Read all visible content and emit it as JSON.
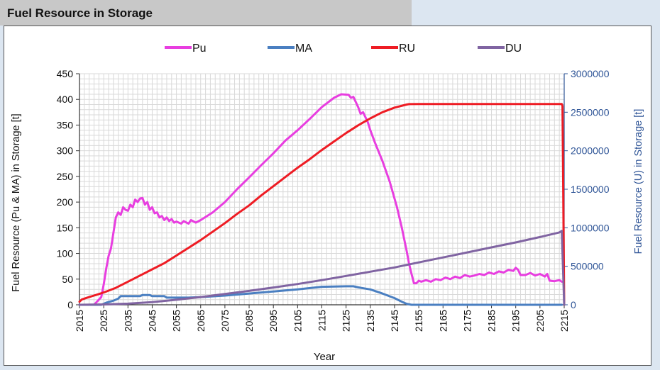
{
  "header": {
    "title": "Fuel Resource in Storage"
  },
  "chart_data": {
    "type": "line",
    "title": "",
    "xlabel": "Year",
    "ylabel": "Fuel Resource (Pu & MA) in Storage [t]",
    "y2label": "Fuel Resource (U) in Storage [t]",
    "xlim": [
      2015,
      2215
    ],
    "ylim": [
      0,
      450
    ],
    "y2lim": [
      0,
      3000000
    ],
    "x_ticks": [
      "2015",
      "2025",
      "2035",
      "2045",
      "2055",
      "2065",
      "2075",
      "2085",
      "2095",
      "2105",
      "2115",
      "2125",
      "2135",
      "2145",
      "2155",
      "2165",
      "2175",
      "2185",
      "2195",
      "2205",
      "2215"
    ],
    "y_ticks": [
      "0",
      "50",
      "100",
      "150",
      "200",
      "250",
      "300",
      "350",
      "400",
      "450"
    ],
    "y2_ticks": [
      "0",
      "500000",
      "1000000",
      "1500000",
      "2000000",
      "2500000",
      "3000000"
    ],
    "grid": true,
    "legend_position": "top",
    "series": [
      {
        "name": "Pu",
        "axis": "left",
        "color": "#e83ee0",
        "points": [
          [
            2015,
            0
          ],
          [
            2021,
            0
          ],
          [
            2022,
            5
          ],
          [
            2024,
            15
          ],
          [
            2025,
            40
          ],
          [
            2026,
            70
          ],
          [
            2027,
            95
          ],
          [
            2028,
            110
          ],
          [
            2029,
            140
          ],
          [
            2030,
            170
          ],
          [
            2031,
            180
          ],
          [
            2032,
            175
          ],
          [
            2033,
            190
          ],
          [
            2034,
            185
          ],
          [
            2035,
            183
          ],
          [
            2036,
            195
          ],
          [
            2037,
            190
          ],
          [
            2038,
            205
          ],
          [
            2039,
            200
          ],
          [
            2040,
            207
          ],
          [
            2041,
            208
          ],
          [
            2042,
            195
          ],
          [
            2043,
            200
          ],
          [
            2044,
            185
          ],
          [
            2045,
            190
          ],
          [
            2046,
            178
          ],
          [
            2047,
            180
          ],
          [
            2048,
            170
          ],
          [
            2049,
            173
          ],
          [
            2050,
            165
          ],
          [
            2051,
            170
          ],
          [
            2052,
            163
          ],
          [
            2053,
            167
          ],
          [
            2054,
            160
          ],
          [
            2055,
            162
          ],
          [
            2057,
            158
          ],
          [
            2058,
            163
          ],
          [
            2060,
            158
          ],
          [
            2061,
            165
          ],
          [
            2063,
            160
          ],
          [
            2065,
            165
          ],
          [
            2070,
            180
          ],
          [
            2075,
            200
          ],
          [
            2080,
            225
          ],
          [
            2085,
            248
          ],
          [
            2090,
            272
          ],
          [
            2095,
            295
          ],
          [
            2100,
            320
          ],
          [
            2105,
            340
          ],
          [
            2110,
            362
          ],
          [
            2115,
            385
          ],
          [
            2120,
            403
          ],
          [
            2123,
            410
          ],
          [
            2126,
            409
          ],
          [
            2127,
            403
          ],
          [
            2128,
            405
          ],
          [
            2130,
            385
          ],
          [
            2131,
            372
          ],
          [
            2132,
            375
          ],
          [
            2134,
            355
          ],
          [
            2135,
            340
          ],
          [
            2137,
            315
          ],
          [
            2140,
            280
          ],
          [
            2143,
            240
          ],
          [
            2146,
            190
          ],
          [
            2148,
            150
          ],
          [
            2150,
            105
          ],
          [
            2151,
            80
          ],
          [
            2152,
            60
          ],
          [
            2153,
            42
          ],
          [
            2154,
            42
          ],
          [
            2155,
            47
          ],
          [
            2156,
            45
          ],
          [
            2158,
            48
          ],
          [
            2160,
            45
          ],
          [
            2162,
            50
          ],
          [
            2164,
            48
          ],
          [
            2166,
            53
          ],
          [
            2168,
            50
          ],
          [
            2170,
            55
          ],
          [
            2172,
            52
          ],
          [
            2174,
            58
          ],
          [
            2176,
            55
          ],
          [
            2178,
            57
          ],
          [
            2180,
            60
          ],
          [
            2182,
            58
          ],
          [
            2184,
            63
          ],
          [
            2186,
            60
          ],
          [
            2188,
            65
          ],
          [
            2190,
            63
          ],
          [
            2192,
            68
          ],
          [
            2194,
            66
          ],
          [
            2195,
            72
          ],
          [
            2196,
            68
          ],
          [
            2197,
            58
          ],
          [
            2199,
            58
          ],
          [
            2201,
            62
          ],
          [
            2203,
            57
          ],
          [
            2205,
            60
          ],
          [
            2207,
            55
          ],
          [
            2208,
            60
          ],
          [
            2209,
            47
          ],
          [
            2211,
            46
          ],
          [
            2213,
            48
          ],
          [
            2214,
            45
          ]
        ]
      },
      {
        "name": "MA",
        "axis": "left",
        "color": "#4a7fc1",
        "points": [
          [
            2015,
            0
          ],
          [
            2024,
            0
          ],
          [
            2026,
            4
          ],
          [
            2029,
            8
          ],
          [
            2031,
            12
          ],
          [
            2032,
            17
          ],
          [
            2040,
            17
          ],
          [
            2041,
            19
          ],
          [
            2044,
            19
          ],
          [
            2045,
            17
          ],
          [
            2050,
            17
          ],
          [
            2051,
            14
          ],
          [
            2060,
            14
          ],
          [
            2065,
            15
          ],
          [
            2075,
            18
          ],
          [
            2085,
            22
          ],
          [
            2095,
            26
          ],
          [
            2105,
            30
          ],
          [
            2115,
            35
          ],
          [
            2125,
            36
          ],
          [
            2128,
            36
          ],
          [
            2130,
            34
          ],
          [
            2135,
            30
          ],
          [
            2140,
            22
          ],
          [
            2145,
            13
          ],
          [
            2148,
            6
          ],
          [
            2150,
            2
          ],
          [
            2152,
            0
          ],
          [
            2214,
            0
          ]
        ]
      },
      {
        "name": "RU",
        "axis": "right",
        "color": "#ee1c24",
        "points": [
          [
            2015,
            40000
          ],
          [
            2016,
            70000
          ],
          [
            2018,
            90000
          ],
          [
            2020,
            110000
          ],
          [
            2022,
            130000
          ],
          [
            2025,
            160000
          ],
          [
            2030,
            220000
          ],
          [
            2035,
            300000
          ],
          [
            2040,
            380000
          ],
          [
            2045,
            460000
          ],
          [
            2050,
            540000
          ],
          [
            2055,
            640000
          ],
          [
            2060,
            740000
          ],
          [
            2065,
            840000
          ],
          [
            2070,
            950000
          ],
          [
            2075,
            1060000
          ],
          [
            2080,
            1180000
          ],
          [
            2085,
            1290000
          ],
          [
            2090,
            1420000
          ],
          [
            2095,
            1540000
          ],
          [
            2100,
            1660000
          ],
          [
            2105,
            1780000
          ],
          [
            2110,
            1890000
          ],
          [
            2115,
            2010000
          ],
          [
            2120,
            2120000
          ],
          [
            2125,
            2230000
          ],
          [
            2130,
            2330000
          ],
          [
            2135,
            2420000
          ],
          [
            2140,
            2500000
          ],
          [
            2145,
            2560000
          ],
          [
            2150,
            2600000
          ],
          [
            2151,
            2605000
          ],
          [
            2155,
            2607000
          ],
          [
            2214,
            2607000
          ],
          [
            2214.3,
            2580000
          ],
          [
            2215,
            0
          ]
        ]
      },
      {
        "name": "DU",
        "axis": "right",
        "color": "#8064a2",
        "points": [
          [
            2015,
            0
          ],
          [
            2025,
            5000
          ],
          [
            2035,
            15000
          ],
          [
            2045,
            35000
          ],
          [
            2055,
            65000
          ],
          [
            2065,
            100000
          ],
          [
            2075,
            140000
          ],
          [
            2085,
            180000
          ],
          [
            2095,
            225000
          ],
          [
            2105,
            270000
          ],
          [
            2115,
            320000
          ],
          [
            2125,
            375000
          ],
          [
            2135,
            430000
          ],
          [
            2145,
            485000
          ],
          [
            2155,
            550000
          ],
          [
            2165,
            615000
          ],
          [
            2175,
            680000
          ],
          [
            2185,
            745000
          ],
          [
            2195,
            810000
          ],
          [
            2205,
            880000
          ],
          [
            2213,
            940000
          ],
          [
            2214,
            960000
          ],
          [
            2215,
            0
          ]
        ]
      }
    ]
  }
}
